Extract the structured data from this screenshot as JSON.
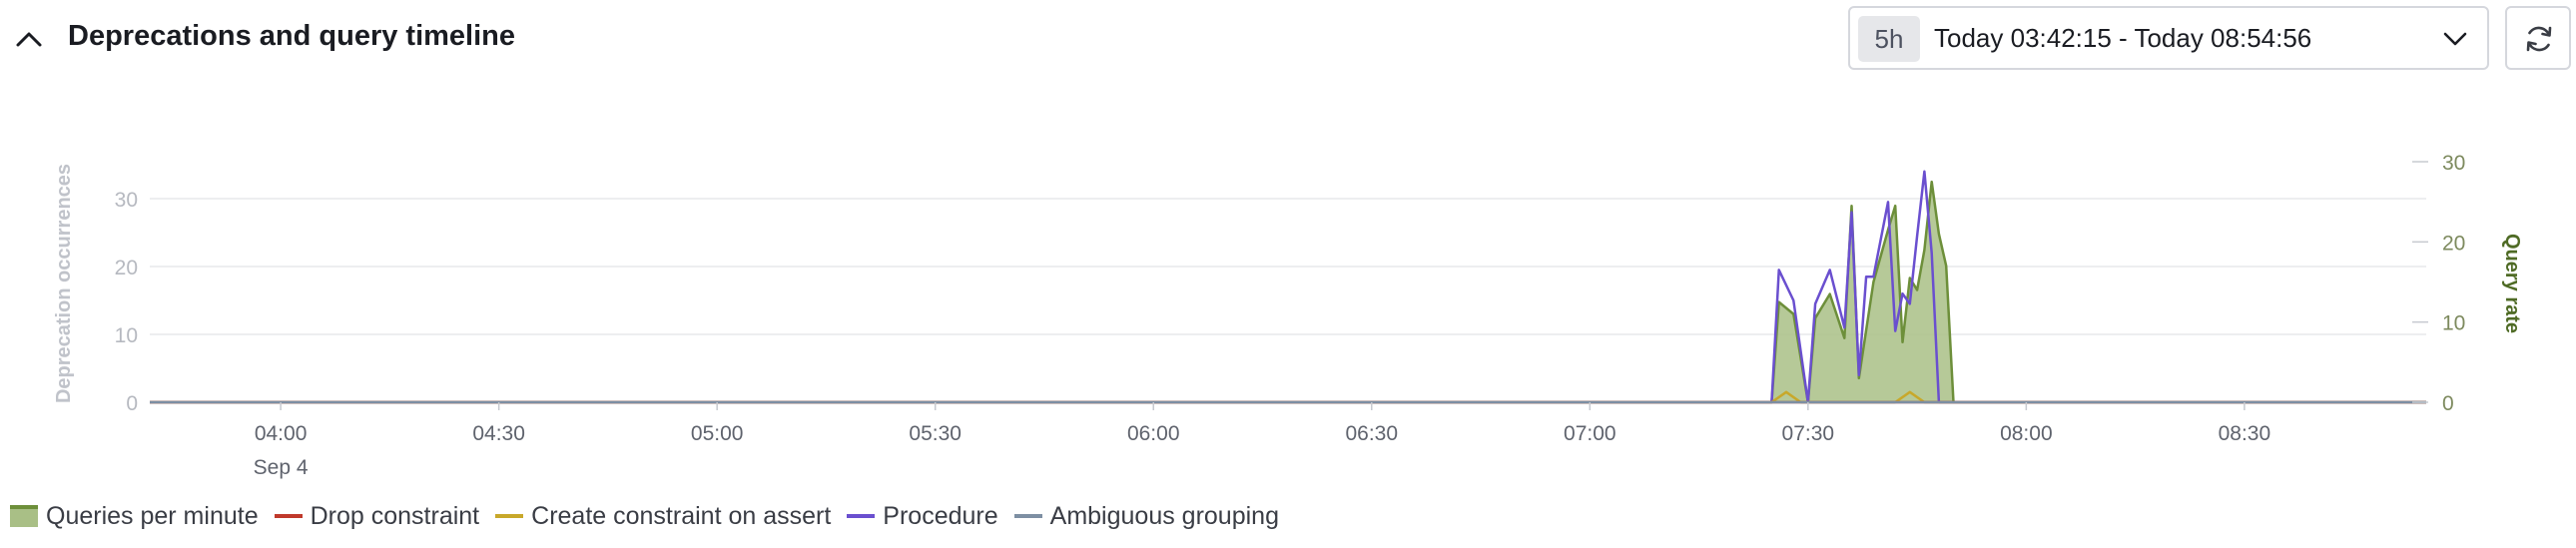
{
  "header": {
    "title": "Deprecations and query timeline",
    "range_badge": "5h",
    "range_text": "Today 03:42:15 - Today 08:54:56"
  },
  "icons": {
    "collapse": "chevron-up-icon",
    "dropdown": "chevron-down-icon",
    "refresh": "refresh-icon"
  },
  "legend": [
    {
      "label": "Queries per minute",
      "color": "#6d8f3a",
      "fill": "#a9bf86",
      "type": "area"
    },
    {
      "label": "Drop constraint",
      "color": "#c0392b",
      "type": "line"
    },
    {
      "label": "Create constraint on assert",
      "color": "#c8a82a",
      "type": "line"
    },
    {
      "label": "Procedure",
      "color": "#6a4fcf",
      "type": "line"
    },
    {
      "label": "Ambiguous grouping",
      "color": "#7d8fa3",
      "type": "line"
    }
  ],
  "chart_data": {
    "type": "line",
    "ylabel_left": "Deprecation occurrences",
    "ylabel_right": "Query rate",
    "y_left_ticks": [
      "0",
      "10",
      "20",
      "30"
    ],
    "y_right_ticks": [
      "0",
      "10",
      "20",
      "30"
    ],
    "x_tick_labels": [
      "04:00",
      "04:30",
      "05:00",
      "05:30",
      "06:00",
      "06:30",
      "07:00",
      "07:30",
      "08:00",
      "08:30"
    ],
    "x_date_label": "Sep 4",
    "x_tick_minutes": [
      240,
      270,
      300,
      330,
      360,
      390,
      420,
      450,
      480,
      510
    ],
    "x_range_minutes": [
      222,
      535
    ],
    "y_left_range": [
      0,
      35
    ],
    "y_right_range": [
      0,
      30
    ],
    "series": [
      {
        "name": "Queries per minute",
        "axis": "right",
        "x": [
          222,
          445,
          446,
          448,
          450,
          451,
          453,
          455,
          456,
          457,
          458,
          459,
          461,
          462,
          463,
          464,
          465,
          466,
          467,
          468,
          469,
          470,
          471,
          472,
          473,
          474,
          475,
          476,
          477,
          478,
          535
        ],
        "y": [
          0,
          0,
          12.5,
          11,
          0,
          10.5,
          13.5,
          8,
          24.5,
          3,
          9,
          15,
          21.5,
          24.5,
          7.5,
          15.5,
          14,
          19,
          27.5,
          21,
          17,
          0,
          0,
          0,
          0,
          0,
          0,
          0,
          0,
          0,
          0
        ]
      },
      {
        "name": "Procedure",
        "axis": "left",
        "x": [
          222,
          445,
          446,
          448,
          450,
          451,
          453,
          455,
          456,
          457,
          458,
          459,
          461,
          462,
          463,
          464,
          465,
          466,
          467,
          468,
          469,
          535
        ],
        "y": [
          0,
          0,
          19.5,
          15,
          0,
          14.5,
          19.5,
          11,
          28,
          4,
          18.5,
          18.5,
          29.5,
          10.5,
          16,
          14.5,
          24.5,
          34,
          22,
          0,
          0,
          0
        ]
      },
      {
        "name": "Create constraint on assert",
        "axis": "left",
        "x": [
          222,
          445,
          447,
          449,
          462,
          464,
          466,
          535
        ],
        "y": [
          0,
          0,
          1.5,
          0,
          0,
          1.5,
          0,
          0
        ]
      },
      {
        "name": "Drop constraint",
        "axis": "left",
        "x": [
          222,
          535
        ],
        "y": [
          0,
          0
        ]
      },
      {
        "name": "Ambiguous grouping",
        "axis": "left",
        "x": [
          222,
          535
        ],
        "y": [
          0,
          0
        ]
      }
    ]
  }
}
